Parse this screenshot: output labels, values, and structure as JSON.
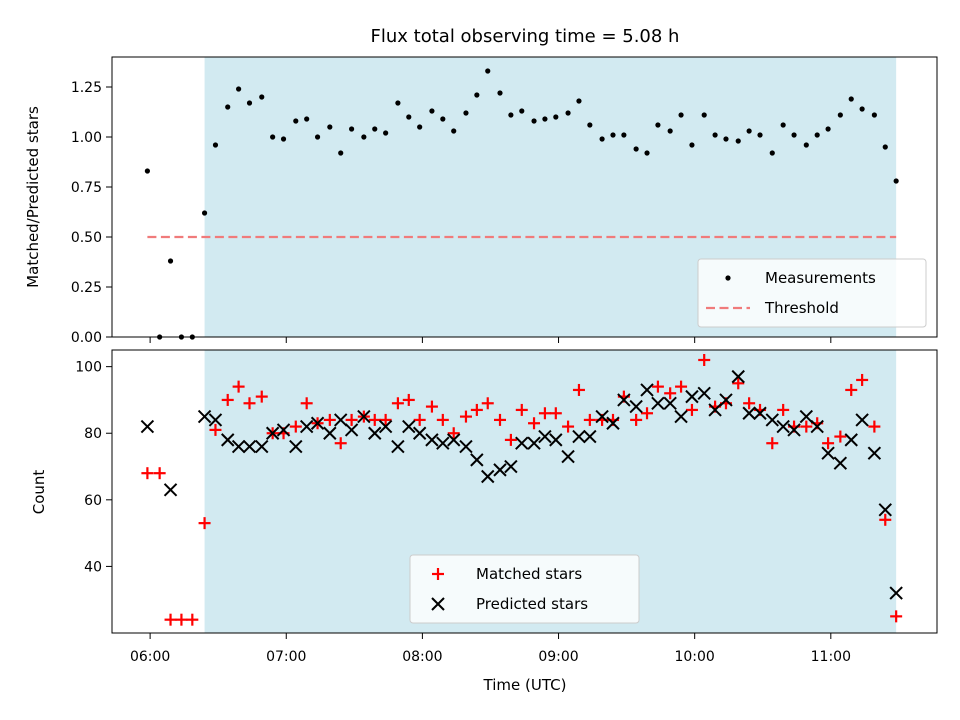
{
  "chart_data": [
    {
      "type": "scatter",
      "title": "Flux total observing time = 5.08 h",
      "xlabel": "",
      "ylabel": "Matched/Predicted stars",
      "ylim": [
        0,
        1.4
      ],
      "yticks": [
        "0.00",
        "0.25",
        "0.50",
        "0.75",
        "1.00",
        "1.25"
      ],
      "ytick_values": [
        0,
        0.25,
        0.5,
        0.75,
        1.0,
        1.25
      ],
      "x_range_hours": [
        5.72,
        11.78
      ],
      "shaded_span_hours": [
        6.4,
        11.48
      ],
      "threshold": {
        "name": "Threshold",
        "value": 0.5,
        "x_range_hours": [
          5.98,
          11.48
        ],
        "color": "#f07b7b"
      },
      "legend_position": "lower-right",
      "series": [
        {
          "name": "Measurements",
          "color": "#000000",
          "marker": "dot",
          "x": [
            5.98,
            6.07,
            6.15,
            6.23,
            6.31,
            6.4,
            6.48,
            6.57,
            6.65,
            6.73,
            6.82,
            6.9,
            6.98,
            7.07,
            7.15,
            7.23,
            7.32,
            7.4,
            7.48,
            7.57,
            7.65,
            7.73,
            7.82,
            7.9,
            7.98,
            8.07,
            8.15,
            8.23,
            8.32,
            8.4,
            8.48,
            8.57,
            8.65,
            8.73,
            8.82,
            8.9,
            8.98,
            9.07,
            9.15,
            9.23,
            9.32,
            9.4,
            9.48,
            9.57,
            9.65,
            9.73,
            9.82,
            9.9,
            9.98,
            10.07,
            10.15,
            10.23,
            10.32,
            10.4,
            10.48,
            10.57,
            10.65,
            10.73,
            10.82,
            10.9,
            10.98,
            11.07,
            11.15,
            11.23,
            11.32,
            11.4,
            11.48
          ],
          "y": [
            0.83,
            0.0,
            0.38,
            0.0,
            0.0,
            0.62,
            0.96,
            1.15,
            1.24,
            1.17,
            1.2,
            1.0,
            0.99,
            1.08,
            1.09,
            1.0,
            1.05,
            0.92,
            1.04,
            1.0,
            1.04,
            1.02,
            1.17,
            1.1,
            1.05,
            1.13,
            1.09,
            1.03,
            1.12,
            1.21,
            1.33,
            1.22,
            1.11,
            1.13,
            1.08,
            1.09,
            1.1,
            1.12,
            1.18,
            1.06,
            0.99,
            1.01,
            1.01,
            0.94,
            0.92,
            1.06,
            1.03,
            1.11,
            0.96,
            1.11,
            1.01,
            0.99,
            0.98,
            1.03,
            1.01,
            0.92,
            1.06,
            1.01,
            0.96,
            1.01,
            1.04,
            1.11,
            1.19,
            1.14,
            1.11,
            0.95,
            0.78
          ]
        }
      ]
    },
    {
      "type": "scatter",
      "title": "",
      "xlabel": "Time (UTC)",
      "ylabel": "Count",
      "ylim": [
        20,
        105
      ],
      "yticks": [
        "40",
        "60",
        "80",
        "100"
      ],
      "ytick_values": [
        40,
        60,
        80,
        100
      ],
      "xticks": [
        "06:00",
        "07:00",
        "08:00",
        "09:00",
        "10:00",
        "11:00"
      ],
      "xtick_values_hours": [
        6,
        7,
        8,
        9,
        10,
        11
      ],
      "x_range_hours": [
        5.72,
        11.78
      ],
      "shaded_span_hours": [
        6.4,
        11.48
      ],
      "legend_position": "lower-center",
      "series": [
        {
          "name": "Matched stars",
          "color": "#ff0000",
          "marker": "plus",
          "x": [
            5.98,
            6.07,
            6.15,
            6.23,
            6.31,
            6.4,
            6.48,
            6.57,
            6.65,
            6.73,
            6.82,
            6.9,
            6.98,
            7.07,
            7.15,
            7.23,
            7.32,
            7.4,
            7.48,
            7.57,
            7.65,
            7.73,
            7.82,
            7.9,
            7.98,
            8.07,
            8.15,
            8.23,
            8.32,
            8.4,
            8.48,
            8.57,
            8.65,
            8.73,
            8.82,
            8.9,
            8.98,
            9.07,
            9.15,
            9.23,
            9.32,
            9.4,
            9.48,
            9.57,
            9.65,
            9.73,
            9.82,
            9.9,
            9.98,
            10.07,
            10.15,
            10.23,
            10.32,
            10.4,
            10.48,
            10.57,
            10.65,
            10.73,
            10.82,
            10.9,
            10.98,
            11.07,
            11.15,
            11.23,
            11.32,
            11.4,
            11.48
          ],
          "y": [
            68,
            68,
            24,
            24,
            24,
            53,
            81,
            90,
            94,
            89,
            91,
            80,
            80,
            82,
            89,
            83,
            84,
            77,
            84,
            85,
            84,
            84,
            89,
            90,
            84,
            88,
            84,
            80,
            85,
            87,
            89,
            84,
            78,
            87,
            83,
            86,
            86,
            82,
            93,
            84,
            84,
            84,
            91,
            84,
            86,
            94,
            92,
            94,
            87,
            102,
            88,
            89,
            95,
            89,
            87,
            77,
            87,
            82,
            82,
            83,
            77,
            79,
            93,
            96,
            82,
            54,
            25
          ]
        },
        {
          "name": "Predicted stars",
          "color": "#000000",
          "marker": "x",
          "x": [
            5.98,
            6.15,
            6.4,
            6.48,
            6.57,
            6.65,
            6.73,
            6.82,
            6.9,
            6.98,
            7.07,
            7.15,
            7.23,
            7.32,
            7.4,
            7.48,
            7.57,
            7.65,
            7.73,
            7.82,
            7.9,
            7.98,
            8.07,
            8.15,
            8.23,
            8.32,
            8.4,
            8.48,
            8.57,
            8.65,
            8.73,
            8.82,
            8.9,
            8.98,
            9.07,
            9.15,
            9.23,
            9.32,
            9.4,
            9.48,
            9.57,
            9.65,
            9.73,
            9.82,
            9.9,
            9.98,
            10.07,
            10.15,
            10.23,
            10.32,
            10.4,
            10.48,
            10.57,
            10.65,
            10.73,
            10.82,
            10.9,
            10.98,
            11.07,
            11.15,
            11.23,
            11.32,
            11.4,
            11.48
          ],
          "y": [
            82,
            63,
            85,
            84,
            78,
            76,
            76,
            76,
            80,
            81,
            76,
            82,
            83,
            80,
            84,
            81,
            85,
            80,
            82,
            76,
            82,
            80,
            78,
            77,
            78,
            76,
            72,
            67,
            69,
            70,
            77,
            77,
            79,
            78,
            73,
            79,
            79,
            85,
            83,
            90,
            88,
            93,
            89,
            89,
            85,
            91,
            92,
            87,
            90,
            97,
            86,
            86,
            84,
            82,
            81,
            85,
            82,
            74,
            71,
            78,
            84,
            74,
            57,
            32
          ]
        }
      ]
    }
  ]
}
